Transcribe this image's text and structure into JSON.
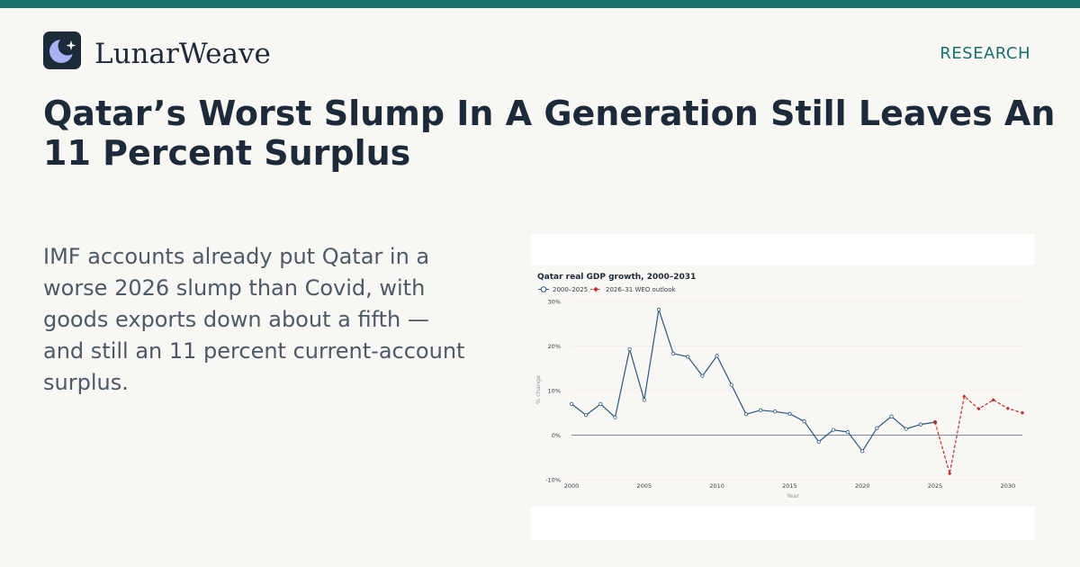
{
  "brand": {
    "name": "LunarWeave",
    "section": "RESEARCH"
  },
  "article": {
    "headline": "Qatar’s Worst Slump In A Generation Still Leaves An 11 Percent Surplus",
    "dek": "IMF accounts already put Qatar in a worse 2026 slump than Covid, with goods exports down about a fifth — and still an 11 percent current-account surplus."
  },
  "colors": {
    "accent": "#19706f",
    "actual_series": "#2a5580",
    "outlook_series": "#b8322a",
    "ink": "#1c2a3a"
  },
  "chart_data": {
    "type": "line",
    "title": "Qatar real GDP growth, 2000–2031",
    "xlabel": "Year",
    "ylabel": "% change",
    "xlim": [
      2000,
      2031
    ],
    "ylim": [
      -10,
      30
    ],
    "x_ticks": [
      2000,
      2005,
      2010,
      2015,
      2020,
      2025,
      2030
    ],
    "y_ticks": [
      -10,
      0,
      10,
      20,
      30
    ],
    "y_tick_labels": [
      "-10%",
      "0%",
      "10%",
      "20%",
      "30%"
    ],
    "grid": true,
    "legend_position": "top-left",
    "series": [
      {
        "name": "2000–2025",
        "style": "solid",
        "x": [
          2000,
          2001,
          2002,
          2003,
          2004,
          2005,
          2006,
          2007,
          2008,
          2009,
          2010,
          2011,
          2012,
          2013,
          2014,
          2015,
          2016,
          2017,
          2018,
          2019,
          2020,
          2021,
          2022,
          2023,
          2024,
          2025
        ],
        "y": [
          7.0,
          4.5,
          7.0,
          4.0,
          19.3,
          7.9,
          28.2,
          18.3,
          17.6,
          13.3,
          17.8,
          11.3,
          4.7,
          5.6,
          5.3,
          4.8,
          3.1,
          -1.5,
          1.2,
          0.7,
          -3.6,
          1.6,
          4.2,
          1.4,
          2.4,
          2.9
        ]
      },
      {
        "name": "2026–31 WEO outlook",
        "style": "dashed",
        "x": [
          2025,
          2026,
          2027,
          2028,
          2029,
          2030,
          2031
        ],
        "y": [
          2.9,
          -8.6,
          8.7,
          5.9,
          7.9,
          6.0,
          5.0
        ]
      }
    ]
  }
}
